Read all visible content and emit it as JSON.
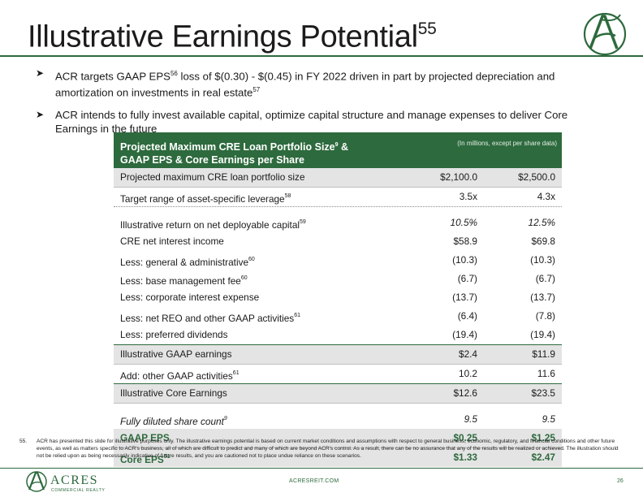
{
  "title": "Illustrative Earnings Potential",
  "title_ref": "55",
  "bullets": [
    {
      "t1": "ACR targets GAAP EPS",
      "r1": "56",
      "t2": " loss of $(0.30) - $(0.45) in FY 2022 driven in part by projected depreciation and amortization on investments in real estate",
      "r2": "57"
    },
    {
      "t1": "ACR intends to fully invest available capital, optimize capital structure and manage expenses to deliver Core Earnings in the future"
    }
  ],
  "table": {
    "header": {
      "line1": "Projected Maximum CRE Loan Portfolio Size",
      "line1_ref": "9",
      "line1_tail": " &",
      "line2": "GAAP EPS & Core Earnings per Share",
      "note": "(In millions, except per share data)"
    },
    "rows": [
      {
        "label": "Projected maximum CRE loan portfolio size",
        "ref": "",
        "v1": "$2,100.0",
        "v2": "$2,500.0"
      },
      {
        "label": "Target range of asset-specific leverage",
        "ref": "58",
        "v1": "3.5x",
        "v2": "4.3x"
      },
      {
        "label": "Illustrative return on net deployable capital",
        "ref": "59",
        "v1": "10.5%",
        "v2": "12.5%"
      },
      {
        "label": "CRE net interest income",
        "ref": "",
        "v1": "$58.9",
        "v2": "$69.8"
      },
      {
        "label": "Less: general & administrative",
        "ref": "60",
        "v1": "(10.3)",
        "v2": "(10.3)"
      },
      {
        "label": "Less: base management fee",
        "ref": "60",
        "v1": "(6.7)",
        "v2": "(6.7)"
      },
      {
        "label": "Less: corporate interest expense",
        "ref": "",
        "v1": "(13.7)",
        "v2": "(13.7)"
      },
      {
        "label": "Less: net REO and other GAAP activities",
        "ref": "61",
        "v1": "(6.4)",
        "v2": "(7.8)"
      },
      {
        "label": "Less: preferred dividends",
        "ref": "",
        "v1": "(19.4)",
        "v2": "(19.4)"
      },
      {
        "label": "Illustrative GAAP earnings",
        "ref": "",
        "v1": "$2.4",
        "v2": "$11.9"
      },
      {
        "label": "Add: other GAAP activities",
        "ref": "61",
        "v1": "10.2",
        "v2": "11.6"
      },
      {
        "label": "Illustrative Core Earnings",
        "ref": "",
        "v1": "$12.6",
        "v2": "$23.5"
      },
      {
        "label": "Fully diluted share count",
        "ref": "9",
        "v1": "9.5",
        "v2": "9.5"
      },
      {
        "label": "GAAP EPS",
        "ref": "",
        "v1": "$0.25",
        "v2": "$1.25"
      },
      {
        "label": "Core EPS",
        "ref": "51",
        "v1": "$1.33",
        "v2": "$2.47"
      }
    ]
  },
  "footnote": {
    "number": "55.",
    "text": "ACR has presented this slide for illustrative purposes only. The illustrative earnings potential is based on current market conditions and assumptions with respect to general business, economic, regulatory, and financial conditions and other future events, as well as matters specific to ACR's business, all of which are difficult to predict and many of which are beyond ACR's control. As a result, there can be no assurance that any of the results will be realized or achieved. The illustration should not be relied upon as being necessarily indicative of future results, and you are cautioned not to place undue reliance on these scenarios."
  },
  "footer": {
    "logo_word": "ACRES",
    "logo_sub": "COMMERCIAL REALTY",
    "url": "ACRESREIT.COM",
    "page": "26"
  },
  "colors": {
    "brand_green": "#2d6a3d",
    "shade_gray": "#e4e4e4"
  }
}
